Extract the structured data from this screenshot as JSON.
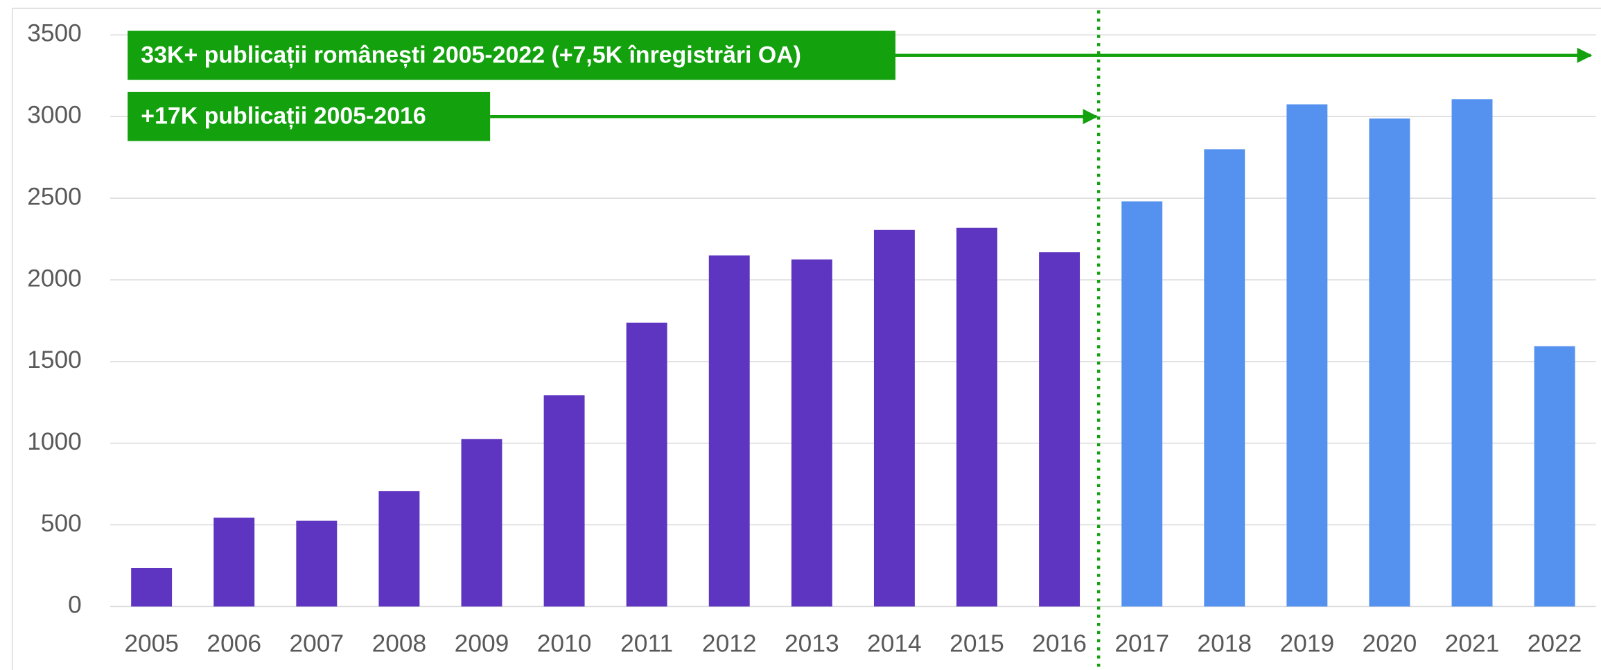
{
  "chart_data": {
    "type": "bar",
    "categories": [
      "2005",
      "2006",
      "2007",
      "2008",
      "2009",
      "2010",
      "2011",
      "2012",
      "2013",
      "2014",
      "2015",
      "2016",
      "2017",
      "2018",
      "2019",
      "2020",
      "2021",
      "2022"
    ],
    "values": [
      235,
      544,
      525,
      706,
      1025,
      1294,
      1738,
      2150,
      2125,
      2306,
      2319,
      2169,
      2481,
      2800,
      3075,
      2988,
      3106,
      1594
    ],
    "colors": [
      "#5e35c0",
      "#5e35c0",
      "#5e35c0",
      "#5e35c0",
      "#5e35c0",
      "#5e35c0",
      "#5e35c0",
      "#5e35c0",
      "#5e35c0",
      "#5e35c0",
      "#5e35c0",
      "#5e35c0",
      "#5592f0",
      "#5592f0",
      "#5592f0",
      "#5592f0",
      "#5592f0",
      "#5592f0"
    ],
    "ylim": [
      0,
      3500
    ],
    "yticks": [
      0,
      500,
      1000,
      1500,
      2000,
      2500,
      3000,
      3500
    ],
    "grid": true,
    "annotations": [
      "33K+ publicații românești 2005-2022 (+7,5K înregistrări OA)",
      "+17K publicații 2005-2016"
    ]
  }
}
